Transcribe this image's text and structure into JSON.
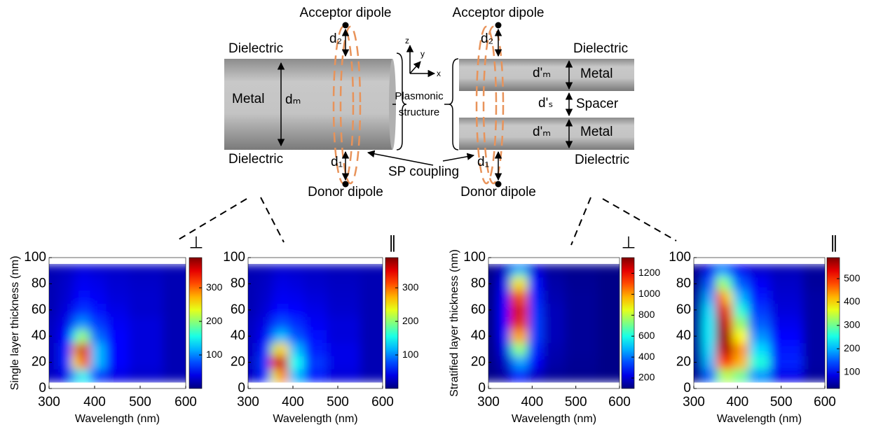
{
  "diagram": {
    "acceptor_left": "Acceptor dipole",
    "acceptor_right": "Acceptor dipole",
    "donor_left": "Donor dipole",
    "donor_right": "Donor dipole",
    "dielectric_left_top": "Dielectric",
    "dielectric_left_bottom": "Dielectric",
    "dielectric_right_top": "Dielectric",
    "dielectric_right_bottom": "Dielectric",
    "metal_left": "Metal",
    "metal_right_top": "Metal",
    "metal_right_bottom": "Metal",
    "spacer": "Spacer",
    "d_m": "dₘ",
    "d_m_prime_top": "d'ₘ",
    "d_m_prime_bottom": "d'ₘ",
    "d_s_prime": "d'ₛ",
    "d2_left": "d₂",
    "d1_left": "d₁",
    "d2_right": "d₂",
    "d1_right": "d₁",
    "plasmonic_1": "Plasmonic",
    "plasmonic_2": "structure",
    "sp_coupling": "SP coupling",
    "axis_z": "z",
    "axis_y": "y",
    "axis_x": "x"
  },
  "chart_data": [
    {
      "type": "heatmap",
      "symbol": "⊥",
      "xlabel": "Wavelength (nm)",
      "ylabel": "Single layer thickness (nm)",
      "x": [
        300,
        340,
        360,
        370,
        380,
        400,
        450,
        500,
        600
      ],
      "y": [
        0,
        10,
        20,
        30,
        40,
        50,
        60,
        70,
        80,
        90,
        100
      ],
      "z": [
        [
          20,
          25,
          40,
          50,
          45,
          30,
          25,
          20,
          15
        ],
        [
          25,
          40,
          120,
          160,
          140,
          70,
          40,
          30,
          20
        ],
        [
          25,
          60,
          250,
          350,
          300,
          120,
          50,
          35,
          20
        ],
        [
          25,
          60,
          280,
          390,
          320,
          120,
          50,
          35,
          20
        ],
        [
          25,
          50,
          160,
          220,
          190,
          90,
          50,
          35,
          20
        ],
        [
          25,
          40,
          90,
          110,
          100,
          70,
          45,
          35,
          20
        ],
        [
          20,
          35,
          60,
          70,
          70,
          55,
          40,
          30,
          20
        ],
        [
          20,
          30,
          45,
          55,
          55,
          45,
          35,
          30,
          20
        ],
        [
          20,
          28,
          40,
          45,
          45,
          40,
          32,
          28,
          20
        ],
        [
          20,
          25,
          35,
          40,
          40,
          35,
          30,
          25,
          20
        ],
        [
          20,
          25,
          30,
          35,
          35,
          30,
          28,
          25,
          20
        ]
      ],
      "xlim": [
        300,
        600
      ],
      "xticks": [
        300,
        400,
        500,
        600
      ],
      "ylim": [
        0,
        100
      ],
      "yticks": [
        0,
        20,
        40,
        60,
        80,
        100
      ],
      "clim": [
        0,
        390
      ],
      "cticks": [
        100,
        200,
        300
      ],
      "colormap": "jet"
    },
    {
      "type": "heatmap",
      "symbol": "∥",
      "xlabel": "Wavelength (nm)",
      "x": [
        300,
        340,
        360,
        370,
        380,
        400,
        450,
        500,
        600
      ],
      "y": [
        0,
        10,
        20,
        30,
        40,
        50,
        60,
        70,
        80,
        90,
        100
      ],
      "z": [
        [
          20,
          30,
          60,
          80,
          70,
          40,
          30,
          25,
          15
        ],
        [
          25,
          60,
          230,
          320,
          280,
          120,
          60,
          35,
          20
        ],
        [
          25,
          70,
          330,
          390,
          350,
          150,
          70,
          40,
          20
        ],
        [
          25,
          60,
          220,
          280,
          250,
          120,
          60,
          40,
          20
        ],
        [
          25,
          45,
          100,
          130,
          120,
          80,
          55,
          35,
          20
        ],
        [
          25,
          38,
          70,
          80,
          80,
          65,
          45,
          35,
          20
        ],
        [
          20,
          32,
          50,
          55,
          55,
          50,
          40,
          30,
          20
        ],
        [
          20,
          28,
          40,
          45,
          45,
          42,
          35,
          28,
          20
        ],
        [
          20,
          26,
          35,
          40,
          40,
          36,
          30,
          26,
          20
        ],
        [
          20,
          24,
          30,
          35,
          35,
          32,
          28,
          24,
          20
        ],
        [
          20,
          22,
          28,
          30,
          30,
          28,
          26,
          22,
          20
        ]
      ],
      "xlim": [
        300,
        600
      ],
      "xticks": [
        300,
        400,
        500,
        600
      ],
      "ylim": [
        0,
        100
      ],
      "yticks": [
        0,
        20,
        40,
        60,
        80,
        100
      ],
      "clim": [
        0,
        390
      ],
      "cticks": [
        100,
        200,
        300
      ],
      "colormap": "jet"
    },
    {
      "type": "heatmap",
      "symbol": "⊥",
      "xlabel": "Wavelength (nm)",
      "ylabel": "Stratified layer thickness (nm)",
      "x": [
        300,
        340,
        360,
        370,
        380,
        400,
        450,
        500,
        600
      ],
      "y": [
        0,
        10,
        20,
        30,
        40,
        50,
        60,
        70,
        80,
        90,
        100
      ],
      "z": [
        [
          110,
          120,
          140,
          150,
          150,
          130,
          120,
          115,
          110
        ],
        [
          110,
          140,
          250,
          300,
          280,
          180,
          130,
          120,
          110
        ],
        [
          110,
          180,
          400,
          480,
          450,
          250,
          150,
          125,
          110
        ],
        [
          110,
          220,
          650,
          800,
          700,
          300,
          160,
          130,
          110
        ],
        [
          110,
          250,
          950,
          1100,
          950,
          330,
          170,
          130,
          110
        ],
        [
          110,
          260,
          1150,
          1300,
          1100,
          330,
          170,
          130,
          110
        ],
        [
          110,
          260,
          1200,
          1350,
          1150,
          320,
          170,
          130,
          110
        ],
        [
          110,
          250,
          1100,
          1250,
          1050,
          300,
          160,
          130,
          110
        ],
        [
          110,
          230,
          850,
          1000,
          850,
          270,
          150,
          125,
          110
        ],
        [
          110,
          200,
          550,
          700,
          600,
          230,
          140,
          120,
          110
        ],
        [
          110,
          170,
          350,
          450,
          380,
          200,
          130,
          120,
          110
        ]
      ],
      "xlim": [
        300,
        600
      ],
      "xticks": [
        300,
        400,
        500,
        600
      ],
      "ylim": [
        0,
        100
      ],
      "yticks": [
        0,
        20,
        40,
        60,
        80,
        100
      ],
      "clim": [
        100,
        1350
      ],
      "cticks": [
        200,
        400,
        600,
        800,
        1000,
        1200
      ],
      "colormap": "jet"
    },
    {
      "type": "heatmap",
      "symbol": "∥",
      "xlabel": "Wavelength (nm)",
      "x": [
        300,
        340,
        360,
        370,
        380,
        400,
        450,
        500,
        600
      ],
      "y": [
        0,
        10,
        20,
        30,
        40,
        50,
        60,
        70,
        80,
        90,
        100
      ],
      "z": [
        [
          40,
          60,
          100,
          120,
          120,
          100,
          80,
          60,
          40
        ],
        [
          40,
          150,
          300,
          350,
          340,
          300,
          180,
          90,
          45
        ],
        [
          45,
          200,
          450,
          520,
          500,
          420,
          260,
          120,
          50
        ],
        [
          45,
          220,
          540,
          580,
          560,
          440,
          220,
          110,
          50
        ],
        [
          45,
          230,
          570,
          590,
          560,
          380,
          180,
          100,
          50
        ],
        [
          45,
          230,
          570,
          580,
          520,
          320,
          150,
          90,
          50
        ],
        [
          45,
          220,
          540,
          550,
          460,
          260,
          130,
          80,
          50
        ],
        [
          45,
          190,
          460,
          460,
          370,
          200,
          110,
          75,
          50
        ],
        [
          40,
          150,
          330,
          340,
          270,
          150,
          95,
          70,
          45
        ],
        [
          40,
          110,
          220,
          230,
          180,
          110,
          80,
          65,
          45
        ],
        [
          40,
          80,
          150,
          150,
          120,
          90,
          70,
          60,
          45
        ]
      ],
      "xlim": [
        300,
        600
      ],
      "xticks": [
        300,
        400,
        500,
        600
      ],
      "ylim": [
        0,
        100
      ],
      "yticks": [
        0,
        20,
        40,
        60,
        80,
        100
      ],
      "clim": [
        30,
        590
      ],
      "cticks": [
        100,
        200,
        300,
        400,
        500
      ],
      "colormap": "jet"
    }
  ]
}
